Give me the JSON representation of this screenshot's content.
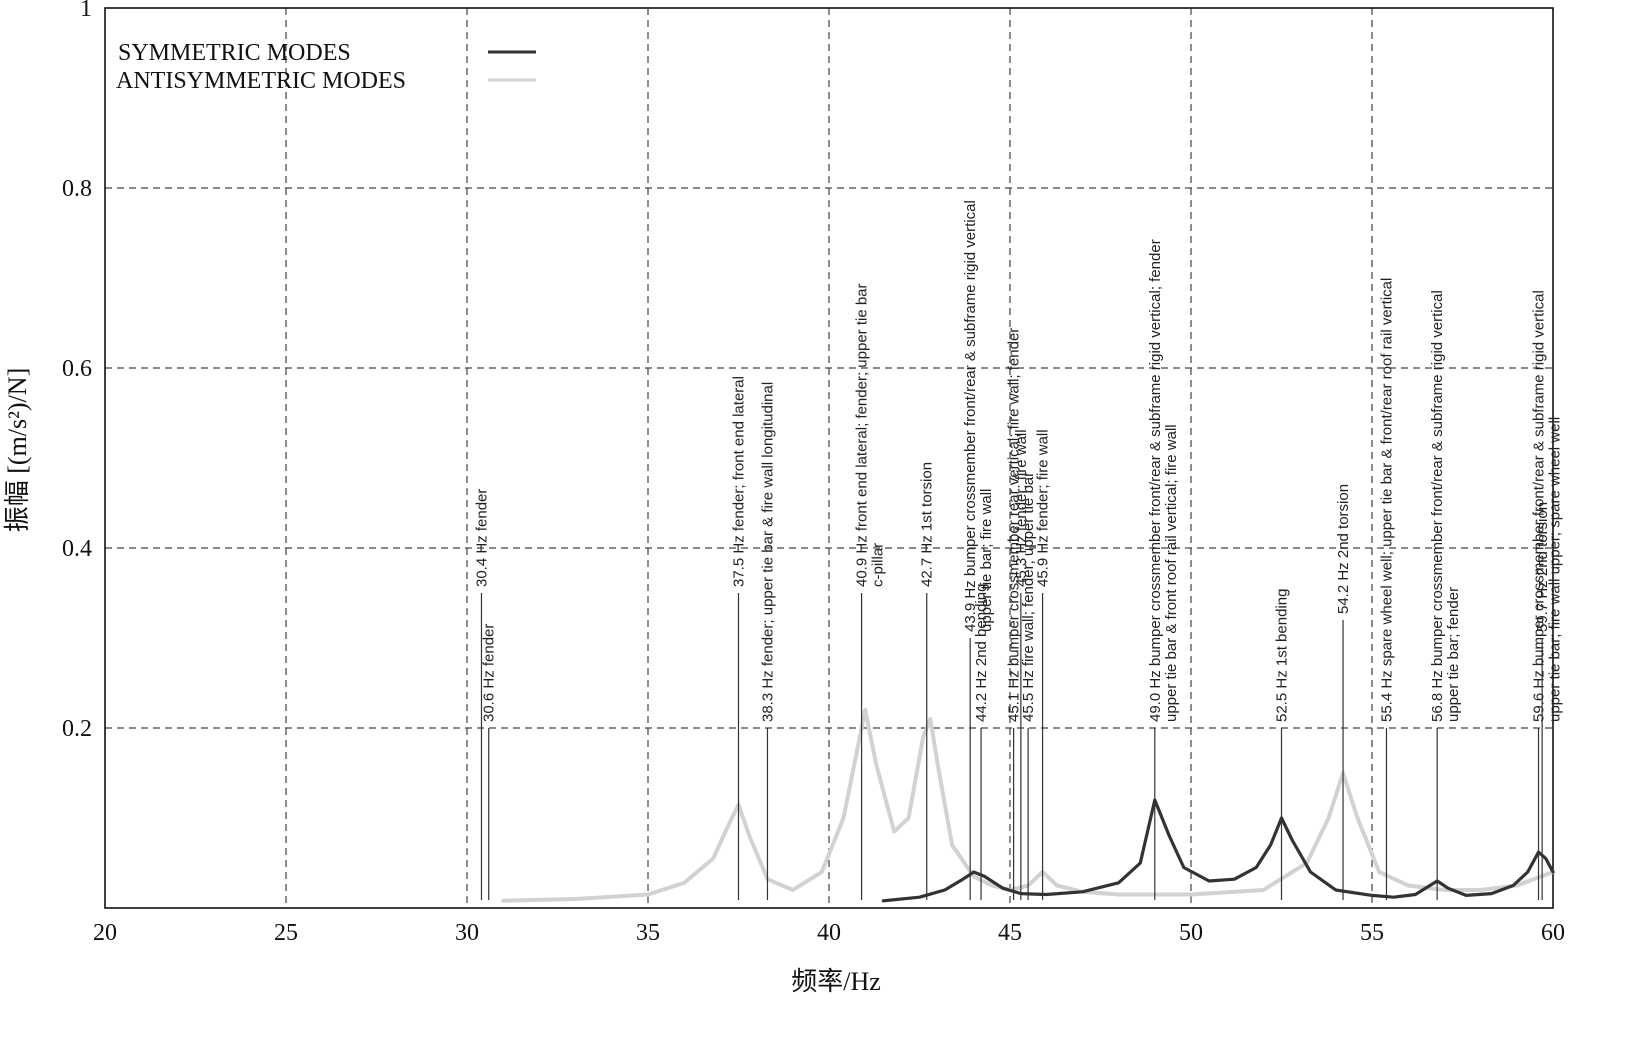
{
  "chart_data": {
    "type": "line",
    "title": "",
    "xlabel": "频率/Hz",
    "ylabel": "振幅 [(m/s²)/N]",
    "xlim": [
      20,
      60
    ],
    "ylim": [
      0,
      1
    ],
    "x_ticks": [
      "20",
      "25",
      "30",
      "35",
      "40",
      "45",
      "50",
      "55",
      "60"
    ],
    "y_ticks": [
      "0.2",
      "0.4",
      "0.6",
      "0.8",
      "1"
    ],
    "grid": true,
    "legend_position": "top-left",
    "series": [
      {
        "name": "SYMMETRIC MODES",
        "color": "#333333",
        "x": [
          41.5,
          42.5,
          43.2,
          43.7,
          44.0,
          44.3,
          44.8,
          45.3,
          46.0,
          47.0,
          48.0,
          48.6,
          49.0,
          49.4,
          49.8,
          50.5,
          51.2,
          51.8,
          52.2,
          52.5,
          52.8,
          53.3,
          54.0,
          55.0,
          55.6,
          56.2,
          56.6,
          56.8,
          57.1,
          57.6,
          58.3,
          58.9,
          59.3,
          59.6,
          59.8,
          60.0
        ],
        "y": [
          0.008,
          0.012,
          0.02,
          0.032,
          0.04,
          0.035,
          0.022,
          0.016,
          0.015,
          0.018,
          0.028,
          0.05,
          0.12,
          0.08,
          0.045,
          0.03,
          0.032,
          0.045,
          0.07,
          0.1,
          0.075,
          0.04,
          0.02,
          0.014,
          0.012,
          0.015,
          0.025,
          0.03,
          0.022,
          0.014,
          0.016,
          0.025,
          0.04,
          0.062,
          0.055,
          0.04
        ]
      },
      {
        "name": "ANTISYMMETRIC MODES",
        "color": "#d2d2d2",
        "x": [
          31.0,
          33.0,
          35.0,
          36.0,
          36.8,
          37.2,
          37.5,
          37.8,
          38.3,
          39.0,
          39.8,
          40.4,
          40.8,
          41.0,
          41.3,
          41.8,
          42.2,
          42.6,
          42.8,
          43.0,
          43.4,
          44.0,
          44.5,
          45.0,
          45.5,
          45.9,
          46.3,
          47.0,
          48.0,
          50.0,
          52.0,
          53.2,
          53.8,
          54.2,
          54.6,
          55.2,
          56.0,
          57.0,
          58.0,
          59.0,
          60.0
        ],
        "y": [
          0.008,
          0.01,
          0.015,
          0.028,
          0.055,
          0.09,
          0.115,
          0.08,
          0.032,
          0.02,
          0.04,
          0.1,
          0.18,
          0.22,
          0.16,
          0.085,
          0.1,
          0.19,
          0.21,
          0.16,
          0.07,
          0.035,
          0.025,
          0.02,
          0.025,
          0.04,
          0.025,
          0.018,
          0.015,
          0.015,
          0.02,
          0.05,
          0.1,
          0.15,
          0.1,
          0.04,
          0.025,
          0.02,
          0.02,
          0.025,
          0.04
        ]
      }
    ],
    "annotations": [
      {
        "x": 30.4,
        "y_anchor": 0.35,
        "text": "30.4 Hz fender"
      },
      {
        "x": 30.6,
        "y_anchor": 0.2,
        "text": "30.6 Hz fender"
      },
      {
        "x": 37.5,
        "y_anchor": 0.35,
        "text": "37.5 Hz fender; front end lateral"
      },
      {
        "x": 38.3,
        "y_anchor": 0.2,
        "text": "38.3 Hz fender; upper tie bar & fire wall longitudinal"
      },
      {
        "x": 40.9,
        "y_anchor": 0.35,
        "text": "40.9 Hz front end lateral; fender; upper tie bar"
      },
      {
        "x": 42.7,
        "y_anchor": 0.35,
        "text": "42.7 Hz 1st torsion"
      },
      {
        "x": 43.9,
        "y_anchor": 0.3,
        "text": "43.9 Hz bumper crossmember front/rear & subframe rigid vertical"
      },
      {
        "x": 44.2,
        "y_anchor": 0.2,
        "text": "44.2 Hz 2nd bending"
      },
      {
        "x": 45.1,
        "y_anchor": 0.2,
        "text": "45.1 Hz bumper crossmember rear vertical; fire wall; fender"
      },
      {
        "x": 45.5,
        "y_anchor": 0.2,
        "text": "45.5 Hz fire wall; fender; upper tie bar"
      },
      {
        "x": 45.3,
        "y_anchor": 0.35,
        "text": "45.3 Hz fender; fire wall"
      },
      {
        "x": 45.9,
        "y_anchor": 0.35,
        "text": "45.9 Hz fender; fire wall"
      },
      {
        "x": 49.0,
        "y_anchor": 0.2,
        "text": "49.0 Hz bumper crossmember front/rear & subframe rigid vertical; fender"
      },
      {
        "x": 52.5,
        "y_anchor": 0.2,
        "text": "52.5 Hz 1st bending"
      },
      {
        "x": 54.2,
        "y_anchor": 0.32,
        "text": "54.2 Hz 2nd torsion"
      },
      {
        "x": 55.4,
        "y_anchor": 0.2,
        "text": "55.4 Hz spare wheel well; upper tie bar & front/rear roof rail vertical"
      },
      {
        "x": 56.8,
        "y_anchor": 0.2,
        "text": "56.8 Hz bumper crossmember front/rear & subframe rigid vertical"
      },
      {
        "x": 59.6,
        "y_anchor": 0.2,
        "text": "59.6 Hz bumper crossmember front/rear & subframe rigid vertical"
      },
      {
        "x": 59.7,
        "y_anchor": 0.3,
        "text": "59.7 Hz 2nd torsion"
      }
    ],
    "annotation_lines2": [
      {
        "x": 40.9,
        "text": "c-pillar"
      },
      {
        "x": 43.9,
        "text": "upper tie bar; fire wall"
      },
      {
        "x": 49.0,
        "text": "upper tie bar & front roof rail vertical; fire wall"
      },
      {
        "x": 56.8,
        "text": "upper tie bar; fender"
      },
      {
        "x": 59.6,
        "text": "upper tie bar; fire wall upper; spare wheel well"
      }
    ]
  }
}
